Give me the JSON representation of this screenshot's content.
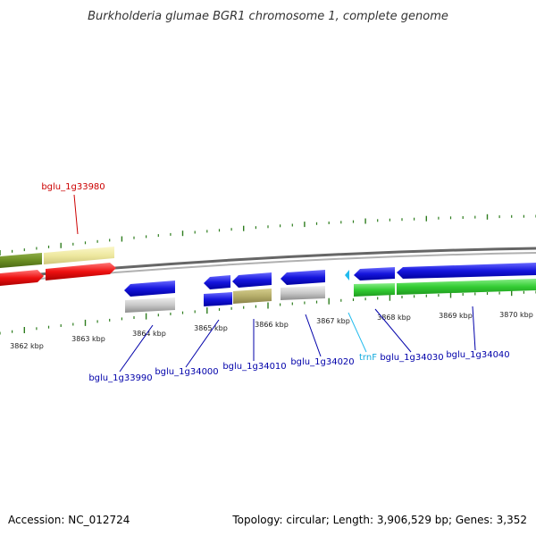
{
  "title": "Burkholderia glumae BGR1 chromosome 1, complete genome",
  "footer": {
    "accession": "Accession: NC_012724",
    "summary": "Topology: circular; Length: 3,906,529 bp; Genes: 3,352"
  },
  "kbp_labels": [
    "3862 kbp",
    "3863 kbp",
    "3864 kbp",
    "3865 kbp",
    "3866 kbp",
    "3867 kbp",
    "3868 kbp",
    "3869 kbp",
    "3870 kbp"
  ],
  "gene_labels": {
    "g33980": "bglu_1g33980",
    "g33990": "bglu_1g33990",
    "g34000": "bglu_1g34000",
    "g34010": "bglu_1g34010",
    "g34020": "bglu_1g34020",
    "trnf": "trnF",
    "g34030": "bglu_1g34030",
    "g34040": "bglu_1g34040"
  },
  "colors": {
    "backbone": "#888888",
    "forward_tick": "#2e7d1e",
    "reverse_tick": "#2e7d1e",
    "red_gene": "#ee1111",
    "blue_gene": "#1515dd",
    "green_gene": "#33cc33",
    "olive_feature": "#6b8e23",
    "khaki_feature": "#eee8a0",
    "tan_feature": "#b5ad6a",
    "gray_feature": "#c8c8c8",
    "trna": "#22bbee",
    "red_label": "#cc0000",
    "blue_label": "#0000aa",
    "trna_label": "#11aadd"
  }
}
